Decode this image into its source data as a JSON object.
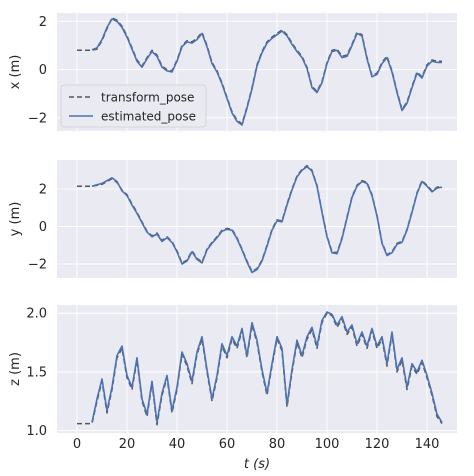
{
  "chart_data": [
    {
      "type": "line",
      "xlabel": "",
      "ylabel": "x (m)",
      "xlim": [
        -8,
        152
      ],
      "ylim": [
        -2.55,
        2.35
      ],
      "xticks": [
        0,
        20,
        40,
        60,
        80,
        100,
        120,
        140
      ],
      "yticks": [
        -2,
        0,
        2
      ],
      "ytick_labels": [
        "−2",
        "0",
        "2"
      ],
      "grid": true,
      "legend": {
        "position": "middle-left",
        "entries": [
          "transform_pose",
          "estimated_pose"
        ]
      },
      "series": [
        {
          "name": "transform_pose",
          "style": "dashed",
          "x": [
            0,
            6,
            8,
            10,
            12,
            14,
            16,
            18,
            20,
            22,
            24,
            26,
            28,
            30,
            32,
            34,
            36,
            38,
            40,
            42,
            44,
            46,
            48,
            50,
            52,
            54,
            56,
            58,
            60,
            62,
            64,
            66,
            68,
            70,
            72,
            74,
            76,
            78,
            80,
            82,
            84,
            86,
            88,
            90,
            92,
            94,
            96,
            98,
            100,
            102,
            104,
            106,
            108,
            110,
            112,
            114,
            116,
            118,
            120,
            122,
            124,
            126,
            128,
            130,
            132,
            134,
            136,
            138,
            140,
            142,
            144,
            146
          ],
          "y": [
            0.8,
            0.8,
            0.85,
            1.2,
            1.7,
            2.15,
            2.05,
            1.8,
            1.4,
            0.9,
            0.4,
            0.15,
            0.5,
            0.8,
            0.6,
            0.15,
            0.0,
            -0.05,
            0.4,
            1.0,
            1.2,
            1.15,
            1.3,
            1.55,
            1.0,
            0.3,
            -0.05,
            -0.55,
            -1.15,
            -1.75,
            -2.1,
            -2.25,
            -1.55,
            -0.75,
            0.2,
            0.75,
            1.15,
            1.35,
            1.5,
            1.65,
            1.45,
            1.1,
            0.8,
            0.55,
            0.1,
            -0.7,
            -0.9,
            -0.5,
            0.3,
            0.8,
            0.85,
            0.55,
            0.6,
            1.05,
            1.55,
            1.45,
            0.5,
            -0.25,
            -0.15,
            0.3,
            0.55,
            -0.05,
            -0.9,
            -1.65,
            -1.35,
            -0.7,
            -0.1,
            -0.3,
            0.2,
            0.4,
            0.35,
            0.35
          ]
        },
        {
          "name": "estimated_pose",
          "style": "solid",
          "x": [
            6,
            8,
            10,
            12,
            14,
            16,
            18,
            20,
            22,
            24,
            26,
            28,
            30,
            32,
            34,
            36,
            38,
            40,
            42,
            44,
            46,
            48,
            50,
            52,
            54,
            56,
            58,
            60,
            62,
            64,
            66,
            68,
            70,
            72,
            74,
            76,
            78,
            80,
            82,
            84,
            86,
            88,
            90,
            92,
            94,
            96,
            98,
            100,
            102,
            104,
            106,
            108,
            110,
            112,
            114,
            116,
            118,
            120,
            122,
            124,
            126,
            128,
            130,
            132,
            134,
            136,
            138,
            140,
            142,
            144,
            146
          ],
          "y": [
            0.82,
            0.9,
            1.25,
            1.75,
            2.1,
            2.0,
            1.75,
            1.35,
            0.85,
            0.35,
            0.1,
            0.45,
            0.75,
            0.55,
            0.1,
            -0.05,
            -0.1,
            0.35,
            0.95,
            1.15,
            1.1,
            1.25,
            1.5,
            0.95,
            0.25,
            -0.1,
            -0.6,
            -1.2,
            -1.8,
            -2.15,
            -2.3,
            -1.6,
            -0.8,
            0.15,
            0.7,
            1.1,
            1.3,
            1.45,
            1.6,
            1.4,
            1.05,
            0.75,
            0.5,
            0.05,
            -0.75,
            -0.95,
            -0.55,
            0.25,
            0.75,
            0.8,
            0.5,
            0.55,
            1.0,
            1.5,
            1.4,
            0.45,
            -0.3,
            -0.2,
            0.25,
            0.5,
            -0.1,
            -0.95,
            -1.7,
            -1.4,
            -0.75,
            -0.15,
            -0.35,
            0.15,
            0.35,
            0.3,
            0.3
          ]
        }
      ]
    },
    {
      "type": "line",
      "xlabel": "",
      "ylabel": "y (m)",
      "xlim": [
        -8,
        152
      ],
      "ylim": [
        -2.75,
        3.55
      ],
      "xticks": [
        0,
        20,
        40,
        60,
        80,
        100,
        120,
        140
      ],
      "yticks": [
        -2,
        0,
        2
      ],
      "ytick_labels": [
        "−2",
        "0",
        "2"
      ],
      "grid": true,
      "series": [
        {
          "name": "transform_pose",
          "style": "dashed",
          "x": [
            0,
            6,
            10,
            14,
            16,
            18,
            20,
            22,
            24,
            26,
            28,
            30,
            32,
            34,
            36,
            38,
            40,
            42,
            44,
            46,
            48,
            50,
            52,
            54,
            56,
            58,
            60,
            62,
            64,
            66,
            68,
            70,
            72,
            74,
            76,
            78,
            80,
            82,
            84,
            86,
            88,
            90,
            92,
            94,
            96,
            98,
            100,
            102,
            104,
            106,
            108,
            110,
            112,
            114,
            116,
            118,
            120,
            122,
            124,
            126,
            128,
            130,
            132,
            134,
            136,
            138,
            140,
            142,
            144,
            146
          ],
          "y": [
            2.15,
            2.15,
            2.25,
            2.55,
            2.35,
            1.95,
            1.7,
            1.2,
            0.75,
            0.25,
            -0.25,
            -0.5,
            -0.35,
            -0.75,
            -0.55,
            -0.8,
            -1.3,
            -1.95,
            -1.8,
            -1.3,
            -1.7,
            -1.9,
            -1.2,
            -0.85,
            -0.55,
            -0.2,
            -0.1,
            -0.15,
            -0.6,
            -1.2,
            -1.85,
            -2.4,
            -2.25,
            -1.8,
            -1.0,
            -0.15,
            0.35,
            0.3,
            1.2,
            2.0,
            2.7,
            3.05,
            3.25,
            3.0,
            2.2,
            0.8,
            -0.5,
            -1.35,
            -1.4,
            -0.6,
            0.5,
            1.6,
            2.2,
            2.45,
            2.35,
            1.7,
            0.6,
            -0.85,
            -1.5,
            -1.35,
            -0.9,
            -0.8,
            -0.15,
            0.8,
            1.8,
            2.45,
            2.2,
            1.9,
            2.1,
            2.15
          ]
        },
        {
          "name": "estimated_pose",
          "style": "solid",
          "x": [
            6,
            10,
            14,
            16,
            18,
            20,
            22,
            24,
            26,
            28,
            30,
            32,
            34,
            36,
            38,
            40,
            42,
            44,
            46,
            48,
            50,
            52,
            54,
            56,
            58,
            60,
            62,
            64,
            66,
            68,
            70,
            72,
            74,
            76,
            78,
            80,
            82,
            84,
            86,
            88,
            90,
            92,
            94,
            96,
            98,
            100,
            102,
            104,
            106,
            108,
            110,
            112,
            114,
            116,
            118,
            120,
            122,
            124,
            126,
            128,
            130,
            132,
            134,
            136,
            138,
            140,
            142,
            144,
            146
          ],
          "y": [
            2.15,
            2.3,
            2.6,
            2.4,
            1.9,
            1.65,
            1.15,
            0.7,
            0.2,
            -0.3,
            -0.55,
            -0.4,
            -0.8,
            -0.6,
            -0.85,
            -1.35,
            -2.0,
            -1.85,
            -1.35,
            -1.75,
            -1.95,
            -1.25,
            -0.9,
            -0.6,
            -0.25,
            -0.15,
            -0.2,
            -0.65,
            -1.25,
            -1.9,
            -2.45,
            -2.3,
            -1.85,
            -1.05,
            -0.2,
            0.3,
            0.25,
            1.15,
            1.95,
            2.65,
            3.0,
            3.2,
            2.95,
            2.15,
            0.75,
            -0.55,
            -1.4,
            -1.45,
            -0.65,
            0.45,
            1.55,
            2.15,
            2.4,
            2.3,
            1.65,
            0.55,
            -0.9,
            -1.55,
            -1.4,
            -0.95,
            -0.85,
            -0.2,
            0.75,
            1.75,
            2.4,
            2.15,
            1.85,
            2.05,
            2.1
          ]
        }
      ]
    },
    {
      "type": "line",
      "xlabel": "t (s)",
      "ylabel": "z (m)",
      "xlim": [
        -8,
        152
      ],
      "ylim": [
        0.98,
        2.07
      ],
      "xticks": [
        0,
        20,
        40,
        60,
        80,
        100,
        120,
        140
      ],
      "yticks": [
        1.0,
        1.5,
        2.0
      ],
      "ytick_labels": [
        "1.0",
        "1.5",
        "2.0"
      ],
      "grid": true,
      "series": [
        {
          "name": "transform_pose",
          "style": "dashed",
          "x": [
            0,
            6,
            8,
            10,
            12,
            14,
            16,
            18,
            20,
            22,
            24,
            26,
            28,
            30,
            32,
            34,
            36,
            38,
            40,
            42,
            44,
            46,
            48,
            50,
            52,
            54,
            56,
            58,
            60,
            62,
            64,
            66,
            68,
            70,
            72,
            74,
            76,
            78,
            80,
            82,
            84,
            86,
            88,
            90,
            92,
            94,
            96,
            98,
            100,
            102,
            104,
            106,
            108,
            110,
            112,
            114,
            116,
            118,
            120,
            122,
            124,
            126,
            128,
            130,
            132,
            134,
            136,
            138,
            140,
            142,
            144,
            146
          ],
          "y": [
            1.06,
            1.06,
            1.25,
            1.42,
            1.15,
            1.35,
            1.62,
            1.7,
            1.45,
            1.35,
            1.6,
            1.25,
            1.12,
            1.4,
            1.05,
            1.3,
            1.45,
            1.15,
            1.35,
            1.65,
            1.55,
            1.4,
            1.65,
            1.78,
            1.5,
            1.25,
            1.45,
            1.72,
            1.62,
            1.78,
            1.7,
            1.85,
            1.62,
            1.9,
            1.75,
            1.5,
            1.3,
            1.55,
            1.78,
            1.68,
            1.2,
            1.5,
            1.75,
            1.62,
            1.78,
            1.86,
            1.7,
            1.92,
            2.0,
            1.98,
            1.88,
            1.95,
            1.82,
            1.88,
            1.72,
            1.82,
            1.7,
            1.85,
            1.7,
            1.78,
            1.55,
            1.82,
            1.5,
            1.6,
            1.35,
            1.55,
            1.48,
            1.58,
            1.45,
            1.3,
            1.12,
            1.06
          ]
        },
        {
          "name": "estimated_pose",
          "style": "solid",
          "x": [
            6,
            8,
            10,
            12,
            14,
            16,
            18,
            20,
            22,
            24,
            26,
            28,
            30,
            32,
            34,
            36,
            38,
            40,
            42,
            44,
            46,
            48,
            50,
            52,
            54,
            56,
            58,
            60,
            62,
            64,
            66,
            68,
            70,
            72,
            74,
            76,
            78,
            80,
            82,
            84,
            86,
            88,
            90,
            92,
            94,
            96,
            98,
            100,
            102,
            104,
            106,
            108,
            110,
            112,
            114,
            116,
            118,
            120,
            122,
            124,
            126,
            128,
            130,
            132,
            134,
            136,
            138,
            140,
            142,
            144,
            146
          ],
          "y": [
            1.07,
            1.27,
            1.44,
            1.17,
            1.37,
            1.64,
            1.72,
            1.47,
            1.37,
            1.62,
            1.27,
            1.14,
            1.42,
            1.07,
            1.32,
            1.47,
            1.17,
            1.37,
            1.67,
            1.57,
            1.42,
            1.67,
            1.8,
            1.52,
            1.27,
            1.47,
            1.74,
            1.64,
            1.8,
            1.72,
            1.87,
            1.64,
            1.92,
            1.77,
            1.52,
            1.32,
            1.57,
            1.8,
            1.7,
            1.22,
            1.52,
            1.77,
            1.64,
            1.8,
            1.88,
            1.72,
            1.94,
            2.01,
            1.99,
            1.9,
            1.97,
            1.84,
            1.9,
            1.74,
            1.84,
            1.72,
            1.87,
            1.72,
            1.8,
            1.57,
            1.84,
            1.52,
            1.62,
            1.37,
            1.57,
            1.5,
            1.6,
            1.47,
            1.32,
            1.14,
            1.07
          ]
        }
      ]
    }
  ],
  "colors": {
    "axes_background": "#eaeaf2",
    "grid": "#ffffff",
    "transform_pose": "#55575f",
    "estimated_pose": "#4c72b0",
    "text": "#262626"
  }
}
